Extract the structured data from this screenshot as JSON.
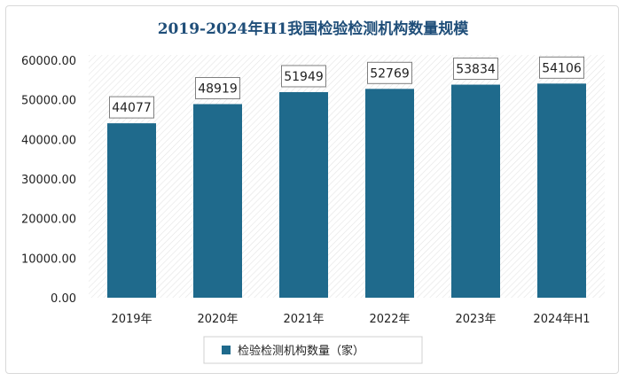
{
  "chart_data": {
    "type": "bar",
    "title": "2019-2024年H1我国检验检测机构数量规模",
    "categories": [
      "2019年",
      "2020年",
      "2021年",
      "2022年",
      "2023年",
      "2024年H1"
    ],
    "series": [
      {
        "name": "检验检测机构数量（家）",
        "values": [
          44077,
          48919,
          51949,
          52769,
          53834,
          54106
        ],
        "color": "#1f6a8c"
      }
    ],
    "data_labels": [
      "44077",
      "48919",
      "51949",
      "52769",
      "53834",
      "54106"
    ],
    "y_ticks": [
      "0.00",
      "10000.00",
      "20000.00",
      "30000.00",
      "40000.00",
      "50000.00",
      "60000.00"
    ],
    "ylim": [
      0,
      60000
    ],
    "xlabel": "",
    "ylabel": "",
    "grid": false,
    "legend_position": "bottom",
    "background_pattern": "diagonal-hatch"
  }
}
